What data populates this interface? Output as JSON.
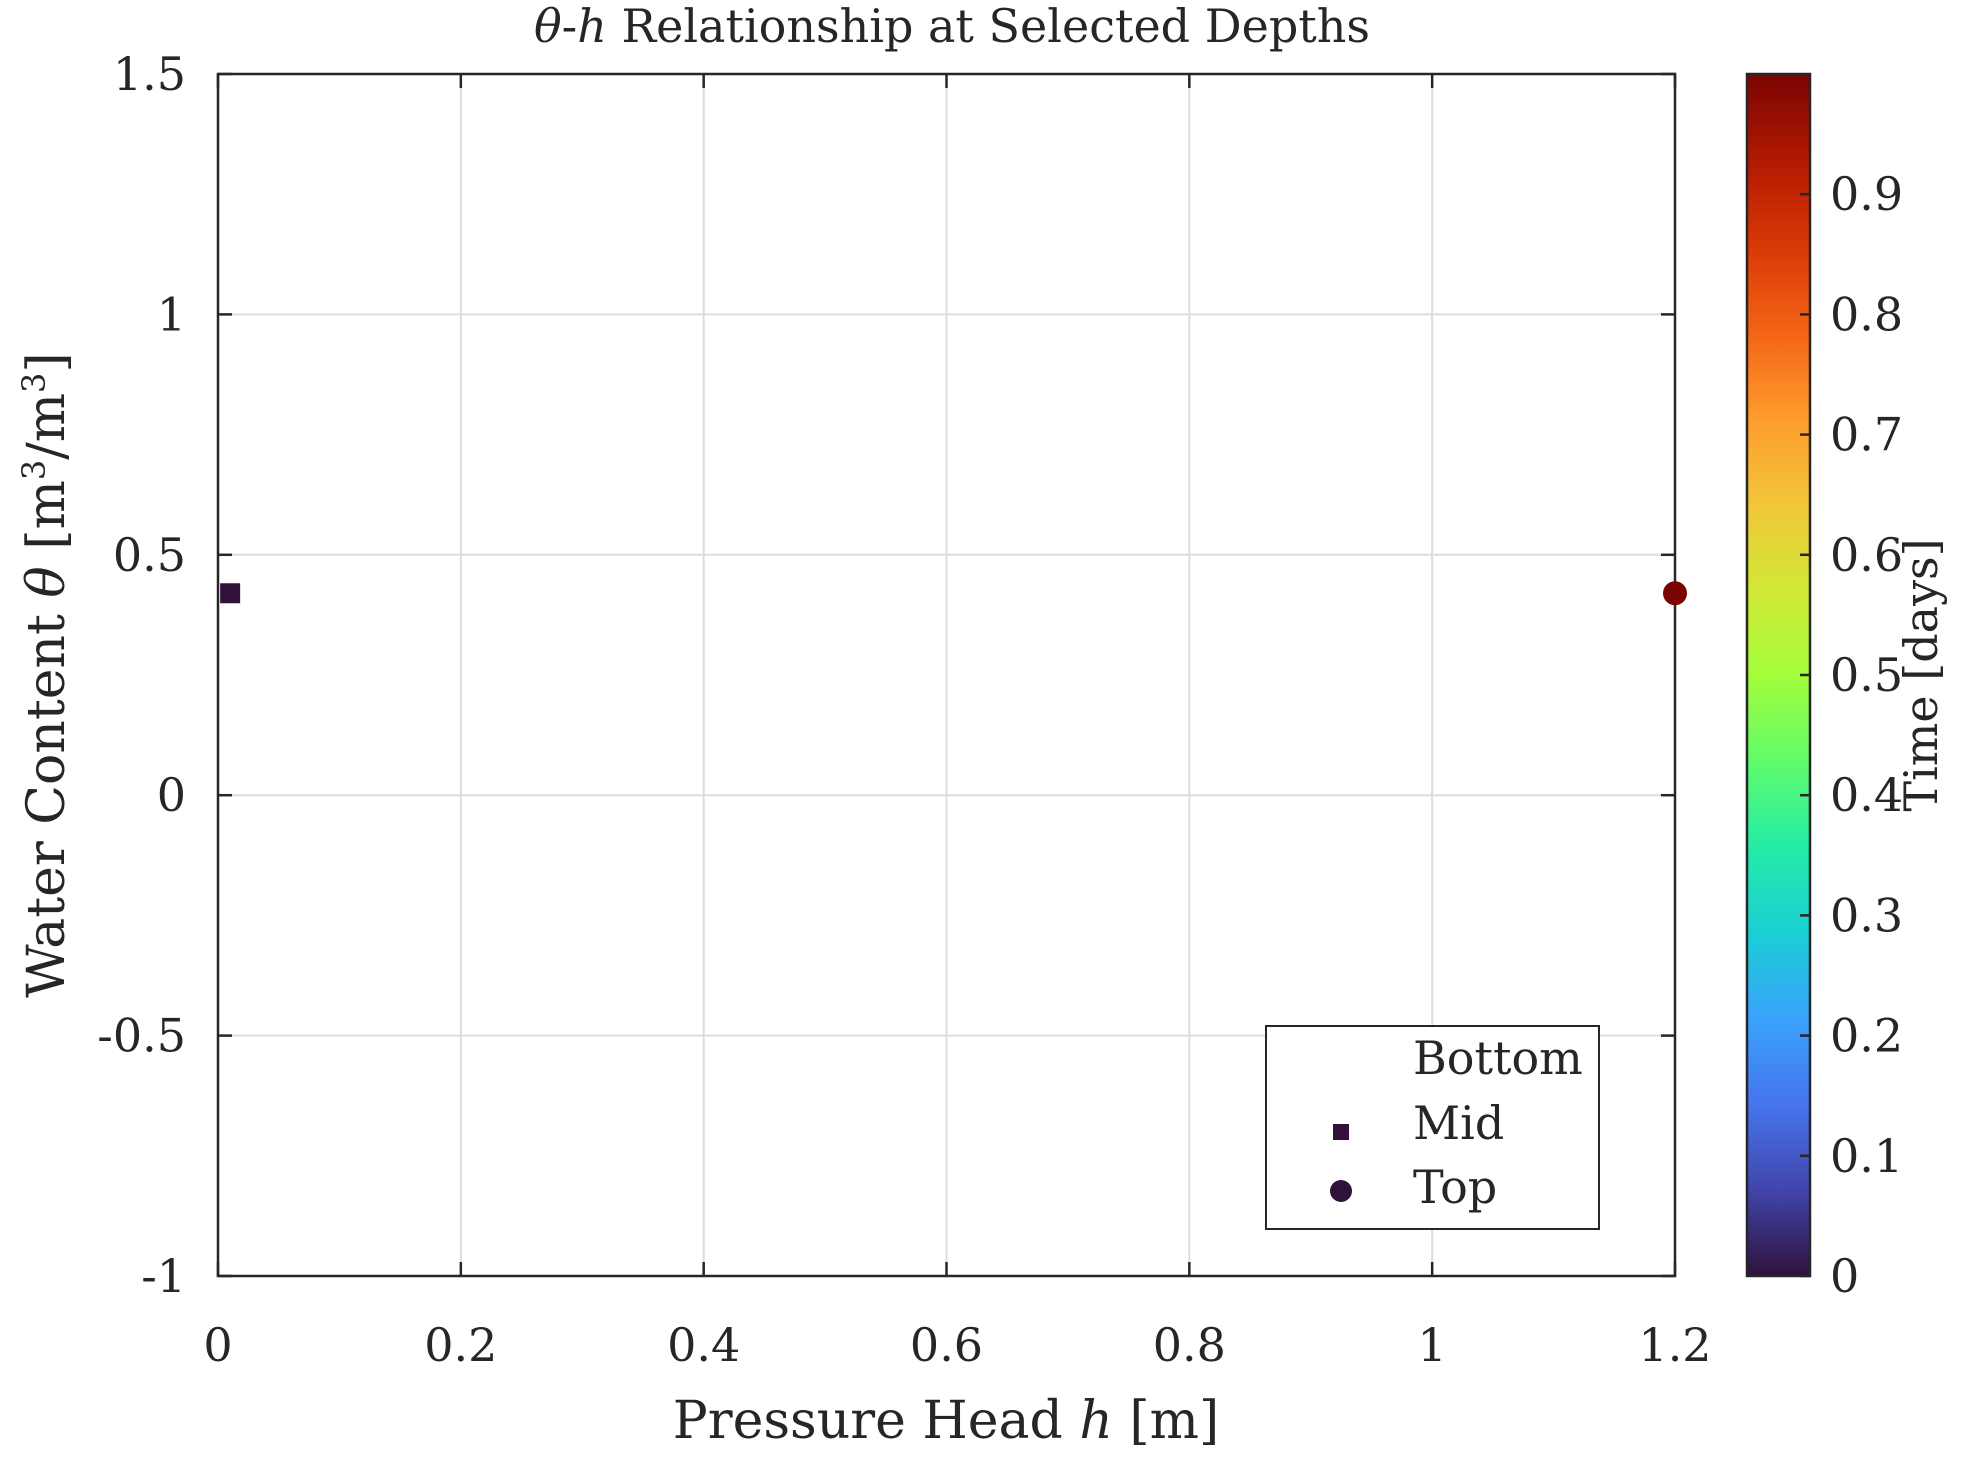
{
  "chart_data": {
    "type": "scatter",
    "title_sym1": "θ",
    "title_dash": "-",
    "title_sym2": "h",
    "title_rest": " Relationship at Selected Depths",
    "xlabel_pre": "Pressure Head ",
    "xlabel_sym": "h",
    "xlabel_post": " [m]",
    "ylabel_pre": "Water Content ",
    "ylabel_sym": "θ",
    "ylabel_b1": " [m",
    "ylabel_sup1": "3",
    "ylabel_b2": "/m",
    "ylabel_sup2": "3",
    "ylabel_b3": "]",
    "xlim": [
      0,
      1.2
    ],
    "ylim": [
      -1,
      1.5
    ],
    "xticks": [
      0,
      0.2,
      0.4,
      0.6,
      0.8,
      1,
      1.2
    ],
    "xtick_labels": [
      "0",
      "0.2",
      "0.4",
      "0.6",
      "0.8",
      "1",
      "1.2"
    ],
    "yticks": [
      -1,
      -0.5,
      0,
      0.5,
      1,
      1.5
    ],
    "ytick_labels": [
      "-1",
      "-0.5",
      "0",
      "0.5",
      "1",
      "1.5"
    ],
    "grid": true,
    "series": [
      {
        "name": "Bottom",
        "marker": "none",
        "points": []
      },
      {
        "name": "Mid",
        "marker": "square",
        "points": [
          {
            "x": 0.01,
            "y": 0.42,
            "t": 0.0
          }
        ]
      },
      {
        "name": "Top",
        "marker": "circle",
        "points": [
          {
            "x": 1.2,
            "y": 0.42,
            "t": 1.0
          }
        ]
      }
    ],
    "legend_position": "bottom-right",
    "legend_markers": [
      "none",
      "square",
      "circle"
    ],
    "legend_marker_color": "#30123b",
    "colorbar": {
      "label": "Time [days]",
      "range": [
        0,
        1
      ],
      "ticks": [
        0,
        0.1,
        0.2,
        0.3,
        0.4,
        0.5,
        0.6,
        0.7,
        0.8,
        0.9
      ],
      "tick_labels": [
        "0",
        "0.1",
        "0.2",
        "0.3",
        "0.4",
        "0.5",
        "0.6",
        "0.7",
        "0.8",
        "0.9"
      ],
      "colormap": "turbo",
      "colors": [
        "#30123b",
        "#4145ab",
        "#4675ed",
        "#39a2fc",
        "#1bcfd4",
        "#24eca6",
        "#61fc6c",
        "#a4fc3b",
        "#d1e834",
        "#f3c63a",
        "#fe9b2d",
        "#f36315",
        "#d93806",
        "#b11901",
        "#7a0402"
      ]
    }
  }
}
